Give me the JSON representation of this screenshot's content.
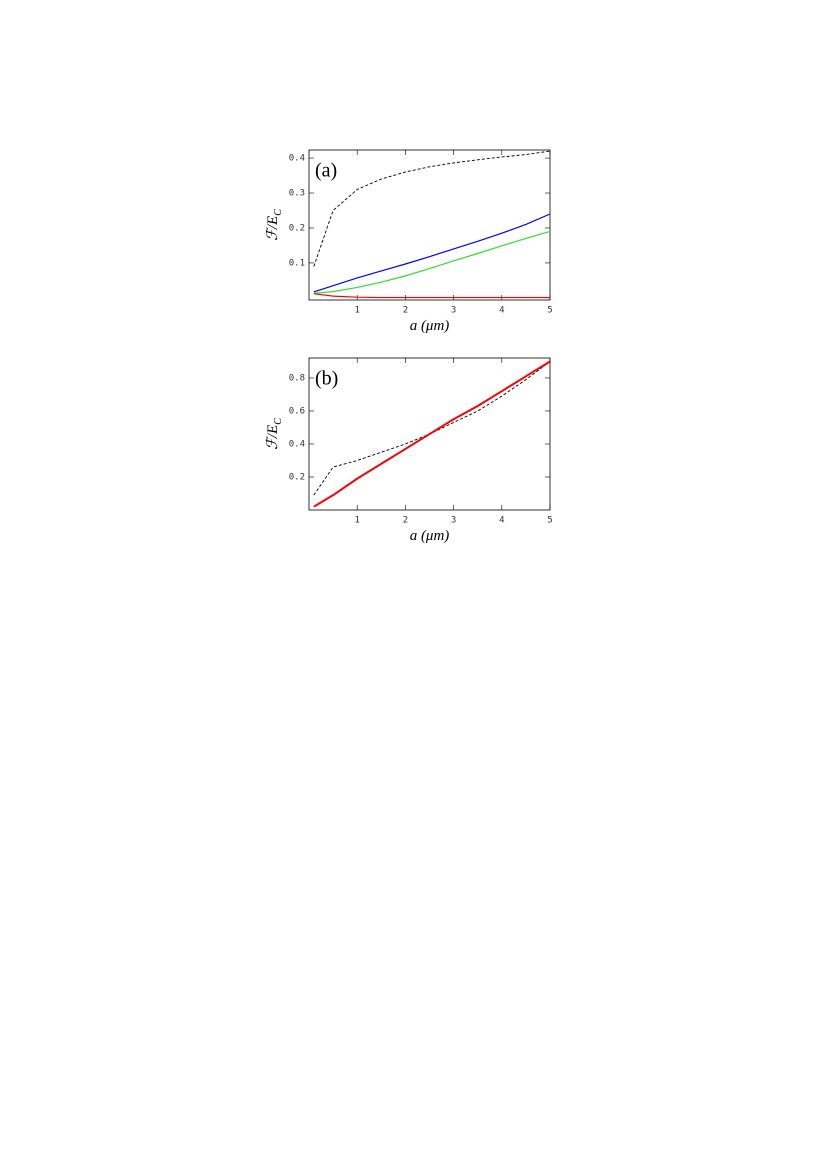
{
  "chart_data": [
    {
      "type": "line",
      "panel_label": "(a)",
      "ylabel": "ℱ/E",
      "ylabel_sub": "C",
      "xlabel": "a (μm)",
      "x": [
        0.1,
        0.5,
        1,
        1.5,
        2,
        2.5,
        3,
        3.5,
        4,
        4.5,
        5
      ],
      "xlim": [
        0,
        5
      ],
      "xticks": [
        1,
        2,
        3,
        4,
        5
      ],
      "ylim": [
        -0.006,
        0.423
      ],
      "yticks": [
        0.1,
        0.2,
        0.3,
        0.4
      ],
      "series": [
        {
          "color": "#000000",
          "dashed": true,
          "values": [
            0.09,
            0.25,
            0.31,
            0.34,
            0.36,
            0.375,
            0.386,
            0.395,
            0.403,
            0.41,
            0.42
          ]
        },
        {
          "color": "#0000ff",
          "dashed": false,
          "values": [
            0.017,
            0.035,
            0.057,
            0.077,
            0.097,
            0.118,
            0.14,
            0.162,
            0.185,
            0.21,
            0.24
          ]
        },
        {
          "color": "#33dd33",
          "dashed": false,
          "values": [
            0.013,
            0.018,
            0.03,
            0.045,
            0.063,
            0.084,
            0.106,
            0.127,
            0.149,
            0.17,
            0.19
          ]
        },
        {
          "color": "#ff0000",
          "dashed": false,
          "values": [
            0.012,
            0.005,
            0.002,
            0.001,
            0.001,
            0.001,
            0.001,
            0.001,
            0.001,
            0.001,
            0.001
          ]
        }
      ]
    },
    {
      "type": "line",
      "panel_label": "(b)",
      "ylabel": "ℱ/E",
      "ylabel_sub": "C",
      "xlabel": "a (μm)",
      "x": [
        0.1,
        0.5,
        1,
        1.5,
        2,
        2.5,
        3,
        3.5,
        4,
        4.5,
        5
      ],
      "xlim": [
        0,
        5
      ],
      "xticks": [
        1,
        2,
        3,
        4,
        5
      ],
      "ylim": [
        0,
        0.921
      ],
      "yticks": [
        0.2,
        0.4,
        0.6,
        0.8
      ],
      "series": [
        {
          "color": "#000000",
          "dashed": true,
          "values": [
            0.09,
            0.26,
            0.3,
            0.35,
            0.4,
            0.46,
            0.53,
            0.6,
            0.69,
            0.79,
            0.9
          ]
        },
        {
          "color": "#ff0000",
          "dashed": false,
          "values": [
            0.02,
            0.09,
            0.19,
            0.28,
            0.37,
            0.46,
            0.55,
            0.63,
            0.72,
            0.81,
            0.9
          ]
        }
      ]
    }
  ]
}
